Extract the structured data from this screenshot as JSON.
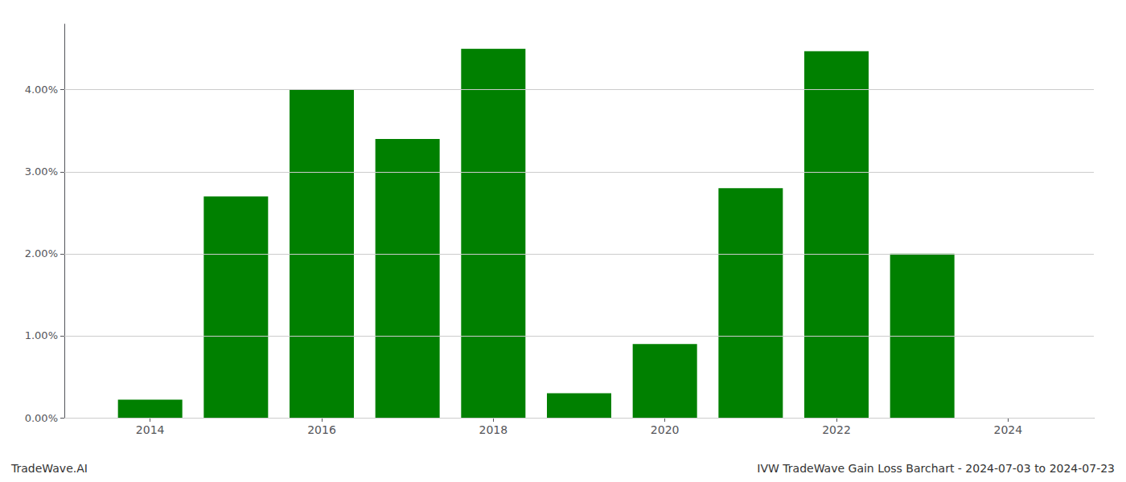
{
  "chart_data": {
    "type": "bar",
    "x": [
      2014,
      2015,
      2016,
      2017,
      2018,
      2019,
      2020,
      2021,
      2022,
      2023,
      2024
    ],
    "values": [
      0.0022,
      0.027,
      0.04,
      0.034,
      0.045,
      0.003,
      0.009,
      0.028,
      0.0447,
      0.02,
      0.0
    ],
    "color": "#008000",
    "xlim": [
      2013.0,
      2025.0
    ],
    "xticks": [
      2014,
      2016,
      2018,
      2020,
      2022,
      2024
    ],
    "ylim": [
      0,
      0.048
    ],
    "yticks": [
      {
        "value": 0.0,
        "label": "0.00%"
      },
      {
        "value": 0.01,
        "label": "1.00%"
      },
      {
        "value": 0.02,
        "label": "2.00%"
      },
      {
        "value": 0.03,
        "label": "3.00%"
      },
      {
        "value": 0.04,
        "label": "4.00%"
      }
    ],
    "grid": true,
    "annotations": [
      "TradeWave.AI",
      "IVW TradeWave Gain Loss Barchart - 2024-07-03 to 2024-07-23"
    ]
  }
}
